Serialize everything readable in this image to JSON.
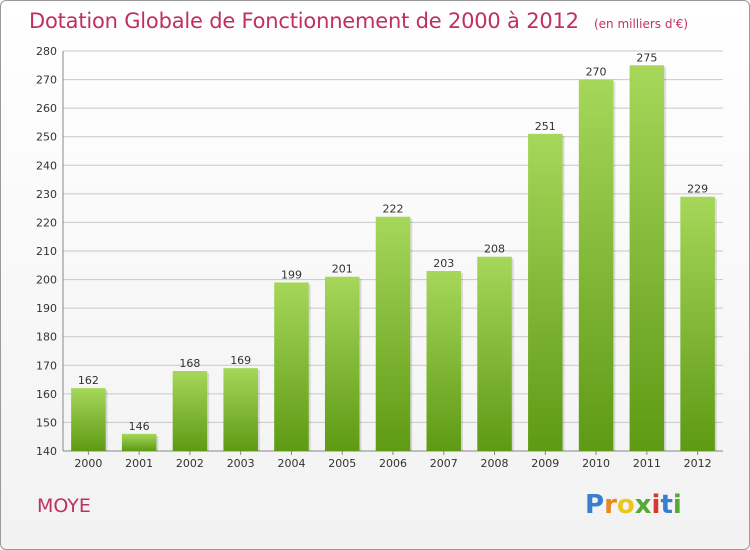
{
  "header": {
    "title": "Dotation Globale de Fonctionnement de 2000 à 2012",
    "unit": "(en milliers d'€)"
  },
  "footer": {
    "commune": "MOYE",
    "brand": "Proxiti"
  },
  "colors": {
    "title": "#c0305e",
    "bar_top": "#a6d75a",
    "bar_bottom": "#5e9a14",
    "grid": "#c8c8c8"
  },
  "chart_data": {
    "type": "bar",
    "categories": [
      "2000",
      "2001",
      "2002",
      "2003",
      "2004",
      "2005",
      "2006",
      "2007",
      "2008",
      "2009",
      "2010",
      "2011",
      "2012"
    ],
    "values": [
      162,
      146,
      168,
      169,
      199,
      201,
      222,
      203,
      208,
      251,
      270,
      275,
      229
    ],
    "data_labels": [
      "162",
      "146",
      "168",
      "169",
      "199",
      "201",
      "222",
      "203",
      "208",
      "251",
      "270",
      "275",
      "229"
    ],
    "ylim": [
      140,
      280
    ],
    "yticks": [
      140,
      150,
      160,
      170,
      180,
      190,
      200,
      210,
      220,
      230,
      240,
      250,
      260,
      270,
      280
    ],
    "grid": true,
    "xlabel": "",
    "ylabel": ""
  }
}
